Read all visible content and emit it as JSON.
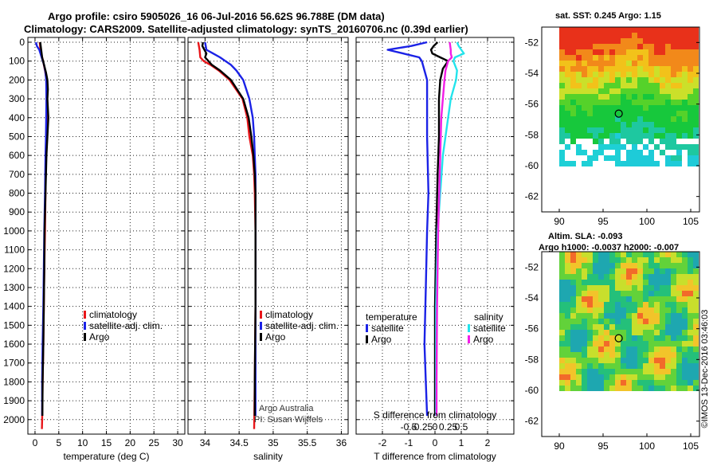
{
  "header": {
    "line1": "Argo profile: csiro 5905026_16 06-Jul-2016 56.62S 96.788E (DM data)",
    "line2": "Climatology: CARS2009. Satellite-adjusted climatology: synTS_20160706.nc (0.39d earlier)"
  },
  "map_titles": {
    "sst": "sat. SST: 0.245 Argo: 1.15",
    "sla1": "Altim. SLA: -0.093",
    "sla2": "Argo h1000: -0.0037 h2000: -0.007"
  },
  "credits": {
    "argo": "Argo Australia",
    "pi": "PI: Susan Wijffels",
    "imos": "©IMOS 13-Dec-2016 03:46:03"
  },
  "colors": {
    "climatology": "#e8161a",
    "satellite": "#1b22e6",
    "argo": "#000000",
    "sat_salinity": "#22e4ec",
    "argo_salinity": "#f21ee6"
  },
  "chart_data": [
    {
      "type": "line",
      "name": "temperature",
      "xlabel": "temperature (deg C)",
      "xlim": [
        -1.5,
        31.5
      ],
      "xticks": [
        0,
        5,
        10,
        15,
        20,
        25,
        30
      ],
      "ylim": [
        0,
        2060
      ],
      "yticks": [
        0,
        100,
        200,
        300,
        400,
        500,
        600,
        700,
        800,
        900,
        1000,
        1100,
        1200,
        1300,
        1400,
        1500,
        1600,
        1700,
        1800,
        1900,
        2000
      ],
      "legend": [
        "climatology",
        "satellite-adj. clim.",
        "Argo"
      ],
      "series": [
        {
          "name": "climatology",
          "depth": [
            0,
            30,
            60,
            100,
            150,
            200,
            300,
            400,
            500,
            600,
            800,
            1000,
            1200,
            1400,
            1600,
            1800,
            2000,
            2050
          ],
          "values": [
            1.0,
            1.1,
            1.3,
            1.7,
            2.1,
            2.4,
            2.45,
            2.4,
            2.35,
            2.3,
            2.2,
            2.1,
            1.95,
            1.85,
            1.75,
            1.6,
            1.5,
            1.45
          ]
        },
        {
          "name": "satellite-adj. clim.",
          "depth": [
            0,
            20,
            40,
            80,
            120,
            160,
            200,
            300,
            400,
            500,
            600,
            800,
            1000,
            1200,
            1400,
            1600,
            1800,
            1980
          ],
          "values": [
            0.2,
            0.4,
            0.9,
            1.4,
            1.9,
            2.2,
            2.35,
            2.4,
            2.35,
            2.3,
            2.2,
            2.1,
            1.95,
            1.85,
            1.75,
            1.6,
            1.5,
            1.5
          ]
        },
        {
          "name": "Argo",
          "depth": [
            0,
            20,
            40,
            80,
            120,
            160,
            200,
            250,
            300,
            400,
            500,
            600,
            800,
            1000,
            1200,
            1400,
            1600,
            1800,
            1980
          ],
          "values": [
            1.1,
            1.2,
            1.3,
            1.5,
            1.9,
            2.3,
            2.6,
            2.7,
            2.6,
            2.8,
            2.6,
            2.4,
            2.2,
            2.0,
            1.95,
            1.85,
            1.75,
            1.6,
            1.55
          ]
        }
      ]
    },
    {
      "type": "line",
      "name": "salinity",
      "xlabel": "salinity",
      "xlim": [
        33.75,
        36.1
      ],
      "xticks": [
        34,
        34.5,
        35,
        35.5,
        36
      ],
      "xticklabels": [
        "34",
        "34.5",
        "35",
        "35.5",
        "36"
      ],
      "ylim": [
        0,
        2060
      ],
      "legend": [
        "climatology",
        "satellite-adj. clim.",
        "Argo"
      ],
      "series": [
        {
          "name": "climatology",
          "depth": [
            0,
            40,
            80,
            100,
            120,
            150,
            200,
            300,
            400,
            500,
            600,
            700,
            800,
            1000,
            1400,
            1800,
            2050
          ],
          "values": [
            33.9,
            33.92,
            33.93,
            33.98,
            34.08,
            34.2,
            34.36,
            34.55,
            34.62,
            34.65,
            34.7,
            34.72,
            34.73,
            34.74,
            34.74,
            34.73,
            34.72
          ]
        },
        {
          "name": "satellite-adj. clim.",
          "depth": [
            0,
            40,
            60,
            80,
            100,
            120,
            150,
            200,
            300,
            400,
            500,
            600,
            700,
            800,
            1000,
            1400,
            1800,
            1980
          ],
          "values": [
            34.0,
            34.02,
            34.12,
            34.22,
            34.3,
            34.38,
            34.46,
            34.56,
            34.65,
            34.7,
            34.72,
            34.73,
            34.74,
            34.74,
            34.74,
            34.74,
            34.74,
            34.74
          ]
        },
        {
          "name": "Argo",
          "depth": [
            0,
            20,
            60,
            80,
            100,
            120,
            150,
            200,
            300,
            400,
            500,
            600,
            700,
            800,
            1000,
            1400,
            1800,
            1980
          ],
          "values": [
            33.97,
            33.96,
            34.02,
            34.0,
            34.05,
            34.1,
            34.22,
            34.38,
            34.56,
            34.64,
            34.68,
            34.71,
            34.73,
            34.74,
            34.74,
            34.74,
            34.73,
            34.73
          ]
        }
      ]
    },
    {
      "type": "line",
      "name": "difference",
      "xlabel": "T difference from climatology",
      "xlabel2": "S difference from climatology",
      "xlim": [
        -3,
        3
      ],
      "xticks": [
        -2,
        -1,
        0,
        1,
        2
      ],
      "sticks": [
        -0.5,
        -0.25,
        0,
        0.25,
        0.5
      ],
      "sticklabels": [
        "-0.5",
        "-0.25",
        "0",
        "0.25",
        "0.5"
      ],
      "ylim": [
        0,
        2060
      ],
      "legend_headers": [
        "temperature",
        "salinity"
      ],
      "legend": [
        "satellite",
        "Argo",
        "satellite",
        "Argo"
      ],
      "series": [
        {
          "name": "T satellite",
          "depth": [
            0,
            20,
            40,
            60,
            80,
            100,
            150,
            200,
            300,
            500,
            800,
            1000,
            1300,
            1600,
            1800,
            1980
          ],
          "values": [
            -0.3,
            -0.9,
            -1.8,
            -1.2,
            -0.6,
            -0.5,
            -0.4,
            -0.3,
            -0.3,
            -0.3,
            -0.25,
            -0.3,
            -0.35,
            -0.4,
            -0.35,
            -0.3
          ]
        },
        {
          "name": "T Argo",
          "depth": [
            0,
            20,
            40,
            60,
            80,
            100,
            140,
            200,
            300,
            500,
            700,
            1000,
            1400,
            1800,
            1980
          ],
          "values": [
            0.1,
            -0.05,
            -0.15,
            -0.1,
            0.2,
            0.5,
            0.3,
            0.2,
            0.15,
            0.15,
            0.1,
            0.05,
            0.0,
            0.0,
            0.0
          ]
        },
        {
          "name": "S satellite",
          "depth": [
            0,
            20,
            40,
            60,
            80,
            100,
            150,
            200,
            300,
            400,
            600,
            800,
            1000,
            1400,
            1800,
            1980
          ],
          "values": [
            0.42,
            0.45,
            0.5,
            0.55,
            0.38,
            0.35,
            0.42,
            0.4,
            0.3,
            0.25,
            0.15,
            0.1,
            0.05,
            0.02,
            0.02,
            0.02
          ]
        },
        {
          "name": "S Argo",
          "depth": [
            0,
            40,
            60,
            80,
            100,
            150,
            200,
            300,
            400,
            600,
            800,
            1000,
            1400,
            1800,
            1980
          ],
          "values": [
            0.28,
            0.3,
            0.3,
            0.32,
            0.25,
            0.2,
            0.18,
            0.15,
            0.12,
            0.1,
            0.08,
            0.06,
            0.04,
            0.03,
            0.03
          ]
        }
      ]
    },
    {
      "type": "heatmap",
      "name": "satellite SST map",
      "title": "sat. SST: 0.245 Argo: 1.15",
      "xlim": [
        88,
        106
      ],
      "xticks": [
        90,
        95,
        100,
        105
      ],
      "ylim": [
        -63,
        -51
      ],
      "yticks": [
        -52,
        -54,
        -56,
        -58,
        -60,
        -62
      ],
      "profile_location": [
        96.788,
        -56.62
      ]
    },
    {
      "type": "heatmap",
      "name": "altimetry SLA map",
      "title": "Altim. SLA: -0.093",
      "xlim": [
        88,
        106
      ],
      "xticks": [
        90,
        95,
        100,
        105
      ],
      "ylim": [
        -63,
        -51
      ],
      "yticks": [
        -52,
        -54,
        -56,
        -58,
        -60,
        -62
      ],
      "profile_location": [
        96.788,
        -56.62
      ]
    }
  ]
}
